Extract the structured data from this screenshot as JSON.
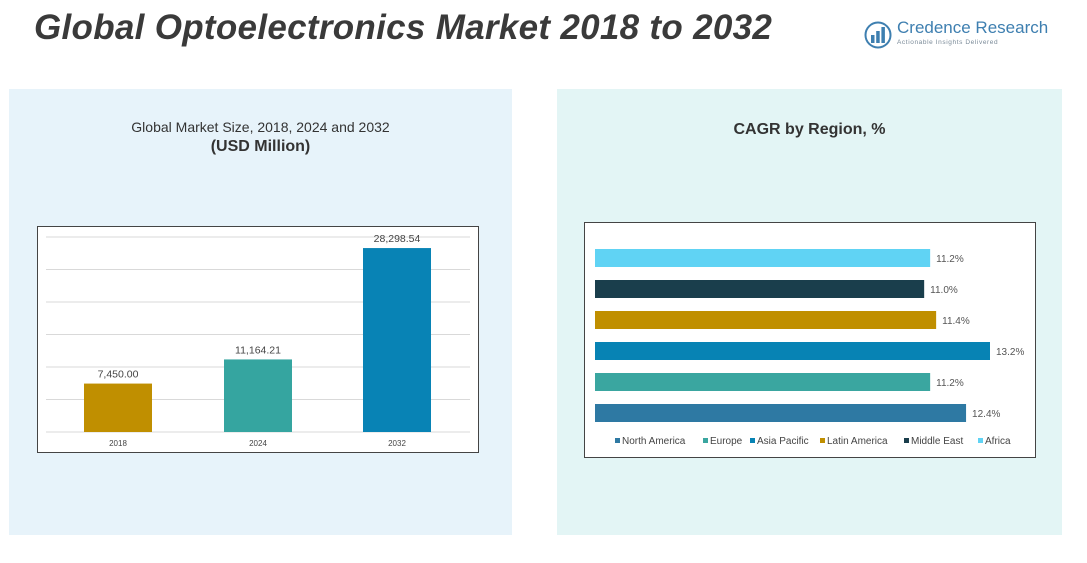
{
  "header": {
    "title": "Global Optoelectronics Market 2018 to 2032",
    "logo_name": "Credence Research",
    "logo_tagline": "Actionable Insights Delivered"
  },
  "colors": {
    "bar_2018": "#c08f00",
    "bar_2024": "#35a5a0",
    "bar_2032": "#0883b5",
    "north_america": "#2e79a3",
    "europe": "#3aa6a0",
    "asia_pacific": "#0783b4",
    "latin_america": "#c08f00",
    "middle_east": "#1a3e4c",
    "africa": "#60d3f4"
  },
  "chart_data": [
    {
      "type": "bar",
      "title": "Global Market Size, 2018, 2024 and 2032",
      "subtitle": "(USD Million)",
      "categories": [
        "2018",
        "2024",
        "2032"
      ],
      "values": [
        7450.0,
        11164.21,
        28298.54
      ],
      "value_labels": [
        "7,450.00",
        "11,164.21",
        "28,298.54"
      ],
      "ylim": [
        0,
        30000
      ],
      "grid": true
    },
    {
      "type": "bar",
      "orientation": "horizontal",
      "title": "CAGR by Region, %",
      "categories": [
        "North America",
        "Europe",
        "Asia Pacific",
        "Latin America",
        "Middle East",
        "Africa"
      ],
      "values": [
        12.4,
        11.2,
        13.2,
        11.4,
        11.0,
        11.2
      ],
      "value_labels": [
        "12.4%",
        "11.2%",
        "13.2%",
        "11.4%",
        "11.0%",
        "11.2%"
      ],
      "legend_position": "bottom"
    }
  ]
}
